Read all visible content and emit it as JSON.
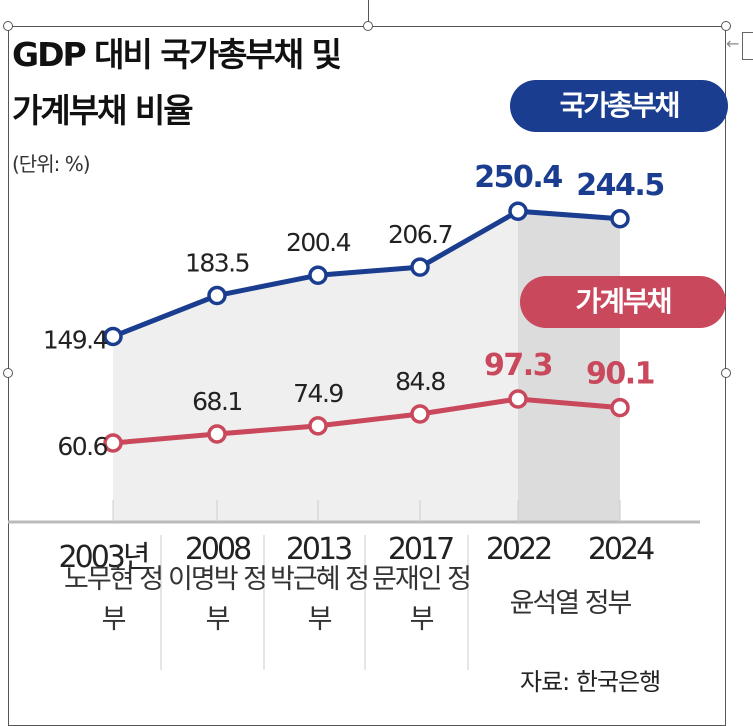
{
  "chart_data": {
    "type": "line",
    "title": "GDP 대비 국가총부채 및 가계부채 비율",
    "title_lines": [
      "GDP 대비 국가총부채 및",
      "가계부채 비율"
    ],
    "unit": "(단위: %)",
    "categories": [
      "2003년",
      "2008",
      "2013",
      "2017",
      "2022",
      "2024"
    ],
    "governments": [
      "노무현 정부",
      "이명박 정부",
      "박근혜 정부",
      "문재인 정부",
      "윤석열 정부"
    ],
    "series": [
      {
        "name": "국가총부채",
        "values": [
          149.4,
          183.5,
          200.4,
          206.7,
          250.4,
          244.5
        ],
        "labels": [
          "149.4",
          "183.5",
          "200.4",
          "206.7",
          "250.4",
          "244.5"
        ],
        "color": "#1a3d8f"
      },
      {
        "name": "가계부채",
        "values": [
          60.6,
          68.1,
          74.9,
          84.8,
          97.3,
          90.1
        ],
        "labels": [
          "60.6",
          "68.1",
          "74.9",
          "84.8",
          "97.3",
          "90.1"
        ],
        "color": "#c9485b"
      }
    ],
    "legend": "top-right",
    "grid": false,
    "source": "자료: 한국은행"
  }
}
